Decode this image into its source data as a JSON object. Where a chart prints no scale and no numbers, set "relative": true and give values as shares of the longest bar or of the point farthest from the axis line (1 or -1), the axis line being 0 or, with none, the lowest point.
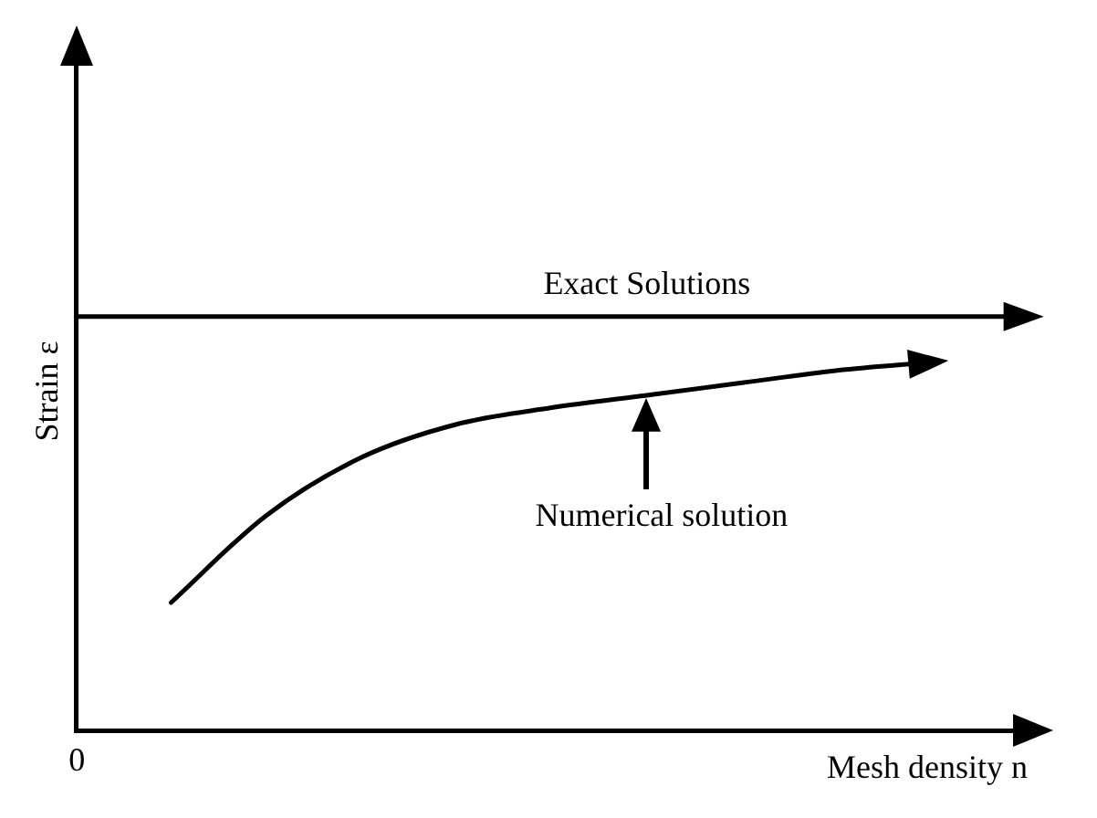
{
  "chart_data": {
    "type": "line",
    "relative": true,
    "xlabel": "Mesh density n",
    "ylabel": "Strain ε",
    "categories": [
      null,
      null,
      null,
      null,
      null,
      null,
      null,
      null,
      null,
      null,
      null
    ],
    "series": [
      {
        "name": "Exact Solutions",
        "color": "#000000",
        "values": [
          1,
          1,
          1,
          1,
          1,
          1,
          1,
          1,
          1,
          1,
          1
        ]
      },
      {
        "color": "#000000",
        "values": [
          null,
          0.31,
          0.52,
          0.66,
          0.74,
          0.78,
          0.81,
          0.84,
          0.87,
          0.89,
          null
        ]
      }
    ],
    "annotations": [
      "0",
      "Numerical solution"
    ],
    "grid": false,
    "legend": false
  }
}
